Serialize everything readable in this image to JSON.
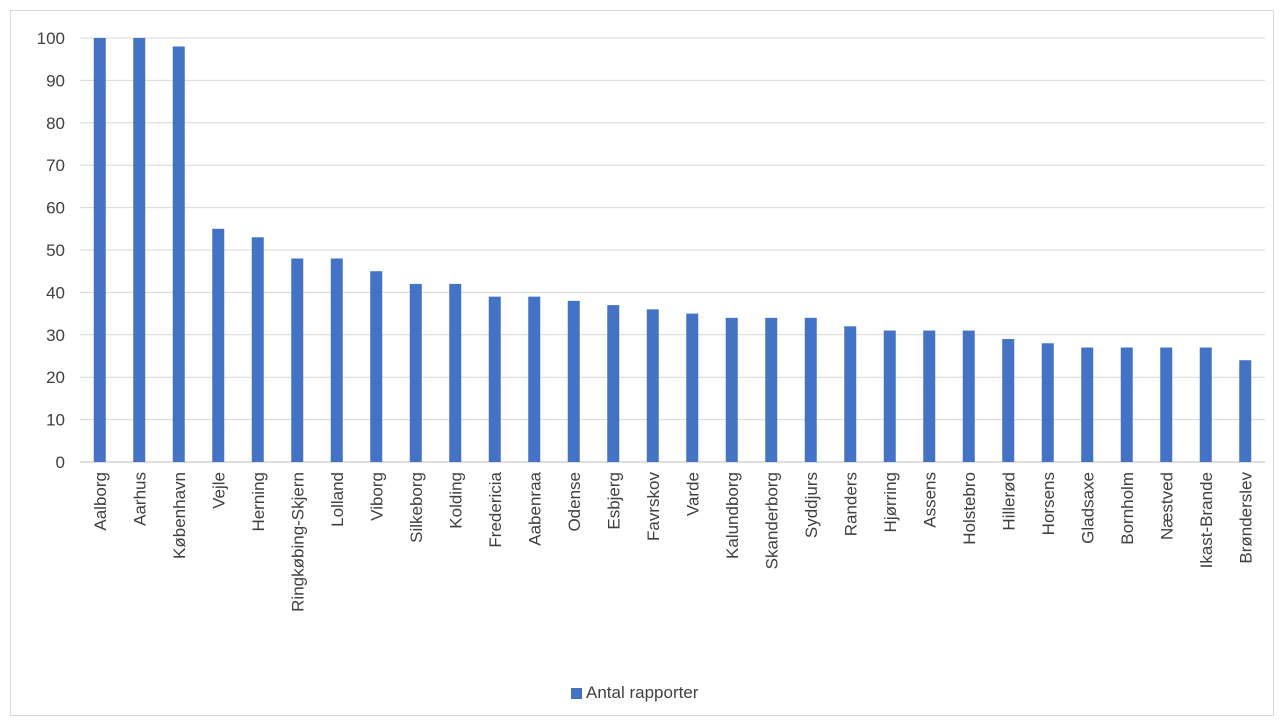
{
  "chart_data": {
    "type": "bar",
    "title": "",
    "xlabel": "",
    "ylabel": "",
    "ylim": [
      0,
      100
    ],
    "yticks": [
      0,
      10,
      20,
      30,
      40,
      50,
      60,
      70,
      80,
      90,
      100
    ],
    "grid": true,
    "legend_position": "bottom",
    "categories": [
      "Aalborg",
      "Aarhus",
      "København",
      "Vejle",
      "Herning",
      "Ringkøbing-Skjern",
      "Lolland",
      "Viborg",
      "Silkeborg",
      "Kolding",
      "Fredericia",
      "Aabenraa",
      "Odense",
      "Esbjerg",
      "Favrskov",
      "Varde",
      "Kalundborg",
      "Skanderborg",
      "Syddjurs",
      "Randers",
      "Hjørring",
      "Assens",
      "Holstebro",
      "Hillerød",
      "Horsens",
      "Gladsaxe",
      "Bornholm",
      "Næstved",
      "Ikast-Brande",
      "Brønderslev"
    ],
    "series": [
      {
        "name": "Antal rapporter",
        "color": "#4472c4",
        "values": [
          100,
          100,
          98,
          55,
          53,
          48,
          48,
          45,
          42,
          42,
          39,
          39,
          38,
          37,
          36,
          35,
          34,
          34,
          34,
          32,
          31,
          31,
          31,
          29,
          28,
          27,
          27,
          27,
          27,
          24
        ]
      }
    ]
  }
}
